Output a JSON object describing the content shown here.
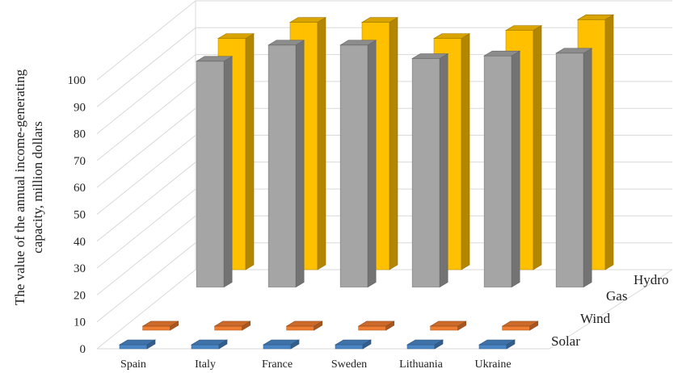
{
  "chart_data": {
    "type": "bar",
    "title": "",
    "xlabel": "",
    "ylabel_lines": [
      "The value of  the annual income-generating",
      "capacity, million dollars"
    ],
    "categories": [
      "Spain",
      "Italy",
      "France",
      "Sweden",
      "Lithuania",
      "Ukraine"
    ],
    "yticks": [
      0,
      10,
      20,
      30,
      40,
      50,
      60,
      70,
      80,
      90,
      100
    ],
    "ylim": [
      0,
      100
    ],
    "grid": true,
    "legend": "series labels along depth axis (right)",
    "series": [
      {
        "name": "Solar",
        "values": [
          0.3,
          0.3,
          0.3,
          0.3,
          0.3,
          0.3
        ],
        "color": "#4a86c6"
      },
      {
        "name": "Wind",
        "values": [
          1.4,
          1.4,
          1.4,
          1.4,
          1.4,
          1.4
        ],
        "color": "#ef7d31"
      },
      {
        "name": "Gas",
        "values": [
          84,
          90,
          90,
          85,
          86,
          87
        ],
        "color": "#a5a5a5"
      },
      {
        "name": "Hydro",
        "values": [
          86,
          92,
          92,
          86,
          89,
          93
        ],
        "color": "#ffc000"
      }
    ]
  }
}
